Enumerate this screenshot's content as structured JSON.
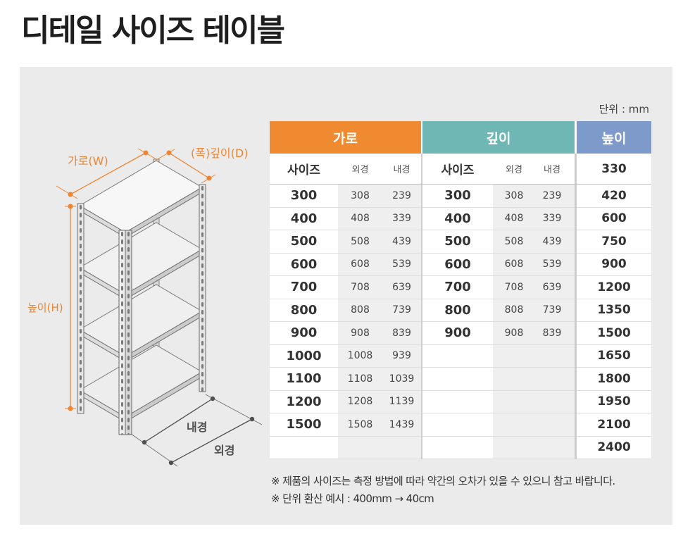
{
  "title": "디테일 사이즈 테이블",
  "unit_label": "단위 : mm",
  "diagram": {
    "width_label": "가로(W)",
    "depth_label": "(폭)깊이(D)",
    "height_label": "높이(H)",
    "inner_label": "내경",
    "outer_label": "외경",
    "accent_color": "#ee8533",
    "line_color": "#4f4f4f"
  },
  "table": {
    "headers": {
      "width": "가로",
      "depth": "깊이",
      "height": "높이"
    },
    "header_colors": {
      "width": "#f08a31",
      "depth": "#6fb7b4",
      "height": "#7e9acb"
    },
    "subheaders": {
      "size": "사이즈",
      "outer": "외경",
      "inner": "내경"
    },
    "width_rows": [
      {
        "size": "300",
        "outer": "308",
        "inner": "239"
      },
      {
        "size": "400",
        "outer": "408",
        "inner": "339"
      },
      {
        "size": "500",
        "outer": "508",
        "inner": "439"
      },
      {
        "size": "600",
        "outer": "608",
        "inner": "539"
      },
      {
        "size": "700",
        "outer": "708",
        "inner": "639"
      },
      {
        "size": "800",
        "outer": "808",
        "inner": "739"
      },
      {
        "size": "900",
        "outer": "908",
        "inner": "839"
      },
      {
        "size": "1000",
        "outer": "1008",
        "inner": "939"
      },
      {
        "size": "1100",
        "outer": "1108",
        "inner": "1039"
      },
      {
        "size": "1200",
        "outer": "1208",
        "inner": "1139"
      },
      {
        "size": "1500",
        "outer": "1508",
        "inner": "1439"
      }
    ],
    "depth_rows": [
      {
        "size": "300",
        "outer": "308",
        "inner": "239"
      },
      {
        "size": "400",
        "outer": "408",
        "inner": "339"
      },
      {
        "size": "500",
        "outer": "508",
        "inner": "439"
      },
      {
        "size": "600",
        "outer": "608",
        "inner": "539"
      },
      {
        "size": "700",
        "outer": "708",
        "inner": "639"
      },
      {
        "size": "800",
        "outer": "808",
        "inner": "739"
      },
      {
        "size": "900",
        "outer": "908",
        "inner": "839"
      }
    ],
    "heights": [
      "330",
      "420",
      "600",
      "750",
      "900",
      "1200",
      "1350",
      "1500",
      "1650",
      "1800",
      "1950",
      "2100",
      "2400"
    ]
  },
  "notes": [
    "※ 제품의 사이즈는 측정 방법에 따라 약간의 오차가 있을 수 있으니 참고 바랍니다.",
    "※ 단위 환산 예시 : 400mm → 40cm"
  ]
}
